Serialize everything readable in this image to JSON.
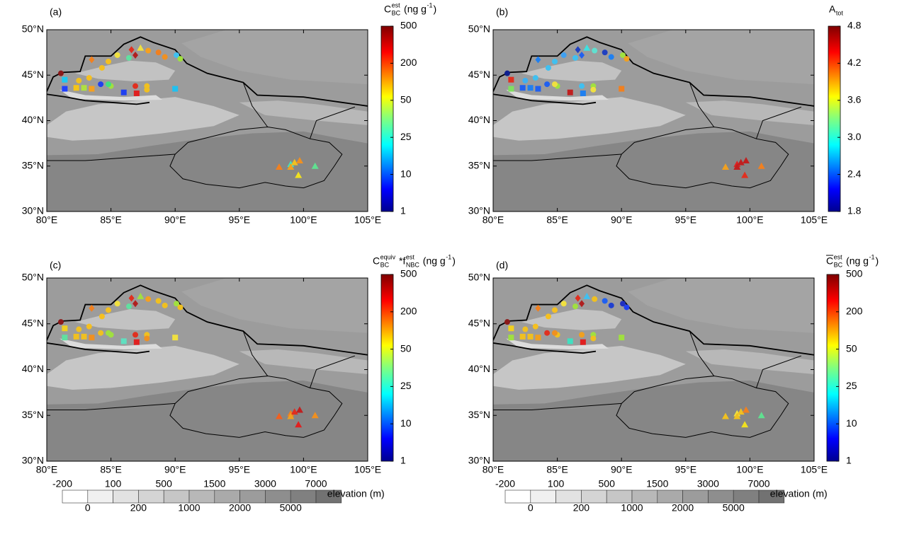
{
  "sites": {
    "lon": [
      81.1,
      81.4,
      81.4,
      82.3,
      82.9,
      83.5,
      82.5,
      83.3,
      83.5,
      84.3,
      84.8,
      85.5,
      86.4,
      86.9,
      86.6,
      87.3,
      87.9,
      88.7,
      89.2,
      90.1,
      90.4,
      84.2,
      85.0,
      86.0,
      86.9,
      87.0,
      87.8,
      87.8,
      90.0,
      84.8,
      98.1,
      99.0,
      99.3,
      99.7,
      99.6,
      100.9,
      99.0
    ],
    "lat": [
      45.2,
      44.5,
      43.5,
      43.6,
      43.6,
      43.5,
      44.4,
      44.7,
      46.7,
      45.8,
      46.5,
      47.2,
      46.9,
      47.2,
      47.8,
      48.0,
      47.7,
      47.5,
      47.0,
      47.2,
      46.8,
      44.0,
      43.8,
      43.1,
      43.8,
      43.0,
      43.8,
      43.4,
      43.5,
      44.0,
      34.9,
      35.2,
      35.4,
      35.6,
      34.0,
      35.0,
      34.9
    ],
    "marker": [
      "circle",
      "square",
      "square",
      "square",
      "square",
      "square",
      "circle",
      "circle",
      "diamond",
      "circle",
      "circle",
      "circle",
      "circle",
      "diamond",
      "diamond",
      "triangle",
      "circle",
      "circle",
      "circle",
      "circle",
      "circle",
      "circle",
      "circle",
      "square",
      "circle",
      "square",
      "circle",
      "circle",
      "square",
      "circle",
      "triangle",
      "triangle",
      "triangle",
      "triangle",
      "triangle",
      "triangle",
      "triangle"
    ]
  },
  "chart_data": [
    {
      "type": "scatter",
      "panel_label": "(a)",
      "colorbar_title": [
        {
          "text": "C"
        },
        {
          "sup": "est",
          "sub": "BC"
        },
        {
          "text": " (ng g"
        },
        {
          "sup": "-1"
        },
        {
          "text": ")"
        }
      ],
      "colorbar_scale": "discrete",
      "colormap": "jet",
      "colorbar_ticks": [
        1,
        10,
        25,
        50,
        200,
        500
      ],
      "xlim": [
        80,
        105
      ],
      "ylim": [
        30,
        50
      ],
      "xticks": [
        {
          "value": 80,
          "label": "80°E"
        },
        {
          "value": 85,
          "label": "85°E"
        },
        {
          "value": 90,
          "label": "90°E"
        },
        {
          "value": 95,
          "label": "95°E"
        },
        {
          "value": 100,
          "label": "100°E"
        },
        {
          "value": 105,
          "label": "105°E"
        }
      ],
      "yticks": [
        {
          "value": 30,
          "label": "30°N"
        },
        {
          "value": 35,
          "label": "35°N"
        },
        {
          "value": 40,
          "label": "40°N"
        },
        {
          "value": 45,
          "label": "45°N"
        },
        {
          "value": 50,
          "label": "50°N"
        }
      ],
      "point_colors": [
        "#8b1a1a",
        "#1ec8f0",
        "#2040ff",
        "#f5c518",
        "#b0e040",
        "#f5a020",
        "#f0c020",
        "#f5c020",
        "#f08020",
        "#f5c020",
        "#f5c020",
        "#f0e040",
        "#60e0a0",
        "#b02020",
        "#e03020",
        "#f0e040",
        "#f5a020",
        "#f08020",
        "#f09020",
        "#40c0f0",
        "#a0e040",
        "#2040f0",
        "#a0e040",
        "#2040f0",
        "#e03020",
        "#e02020",
        "#f0c020",
        "#f0c020",
        "#20c0f0",
        "#40e080",
        "#f08020",
        "#40e0c0",
        "#f0c020",
        "#f09020",
        "#f0e020",
        "#60e090",
        "#f0a020"
      ]
    },
    {
      "type": "scatter",
      "panel_label": "(b)",
      "colorbar_title": [
        {
          "text": "A"
        },
        {
          "sub": "tot"
        }
      ],
      "colorbar_scale": "linear",
      "colormap": "jet",
      "clim": [
        1.8,
        4.8
      ],
      "colorbar_ticks": [
        1.8,
        2.4,
        3.0,
        3.6,
        4.2,
        4.8
      ],
      "colorbar_tick_labels": [
        "1.8",
        "2.4",
        "3.0",
        "3.6",
        "4.2",
        "4.8"
      ],
      "xlim": [
        80,
        105
      ],
      "ylim": [
        30,
        50
      ],
      "xticks": [
        {
          "value": 80,
          "label": "80°E"
        },
        {
          "value": 85,
          "label": "85°E"
        },
        {
          "value": 90,
          "label": "90°E"
        },
        {
          "value": 95,
          "label": "95°E"
        },
        {
          "value": 100,
          "label": "100°E"
        },
        {
          "value": 105,
          "label": "105°E"
        }
      ],
      "yticks": [
        {
          "value": 30,
          "label": "30°N"
        },
        {
          "value": 35,
          "label": "35°N"
        },
        {
          "value": 40,
          "label": "40°N"
        },
        {
          "value": 45,
          "label": "45°N"
        },
        {
          "value": 50,
          "label": "50°N"
        }
      ],
      "point_colors": [
        "#10208f",
        "#e03020",
        "#80e060",
        "#2060f0",
        "#2080f0",
        "#2060f0",
        "#40b0f0",
        "#40c0f0",
        "#2080f0",
        "#40c0f0",
        "#40c0f0",
        "#40a0f0",
        "#40c0f0",
        "#2060f0",
        "#2040c0",
        "#40e0e0",
        "#60e0d0",
        "#2040c0",
        "#2080f0",
        "#a0e040",
        "#f0a020",
        "#2060f0",
        "#a0e040",
        "#c02020",
        "#40c0f0",
        "#2080f0",
        "#a0e040",
        "#f0e040",
        "#f08020",
        "#f0e040",
        "#f0a020",
        "#e02020",
        "#c02020",
        "#c02020",
        "#e03020",
        "#f08020",
        "#c02020"
      ]
    },
    {
      "type": "scatter",
      "panel_label": "(c)",
      "colorbar_title": [
        {
          "text": "C"
        },
        {
          "sup": "equiv",
          "sub": "BC"
        },
        {
          "text": " *f"
        },
        {
          "sup": "est",
          "sub": "NBC"
        },
        {
          "text": " (ng g"
        },
        {
          "sup": "-1"
        },
        {
          "text": ")"
        }
      ],
      "colorbar_scale": "discrete",
      "colormap": "jet",
      "colorbar_ticks": [
        1,
        10,
        25,
        50,
        200,
        500
      ],
      "xlim": [
        80,
        105
      ],
      "ylim": [
        30,
        50
      ],
      "xticks": [
        {
          "value": 80,
          "label": "80°E"
        },
        {
          "value": 85,
          "label": "85°E"
        },
        {
          "value": 90,
          "label": "90°E"
        },
        {
          "value": 95,
          "label": "95°E"
        },
        {
          "value": 100,
          "label": "100°E"
        },
        {
          "value": 105,
          "label": "105°E"
        }
      ],
      "yticks": [
        {
          "value": 30,
          "label": "30°N"
        },
        {
          "value": 35,
          "label": "35°N"
        },
        {
          "value": 40,
          "label": "40°N"
        },
        {
          "value": 45,
          "label": "45°N"
        },
        {
          "value": 50,
          "label": "50°N"
        }
      ],
      "point_colors": [
        "#8b1a1a",
        "#f0d020",
        "#60e0a0",
        "#f0c020",
        "#f0c020",
        "#f09020",
        "#f0c020",
        "#f5c020",
        "#f08020",
        "#f5c020",
        "#f5c020",
        "#f0e040",
        "#60e0a0",
        "#b02020",
        "#e03020",
        "#a0e040",
        "#f5a020",
        "#f0c020",
        "#f0c020",
        "#a0e040",
        "#f0c020",
        "#f0c020",
        "#a0e040",
        "#60e0c0",
        "#e03020",
        "#e02020",
        "#f0c020",
        "#f09020",
        "#f0e040",
        "#a0e040",
        "#f06020",
        "#f08020",
        "#e03020",
        "#c02020",
        "#e02020",
        "#f09020",
        "#f0a020"
      ]
    },
    {
      "type": "scatter",
      "panel_label": "(d)",
      "colorbar_title": [
        {
          "text": "C",
          "overline": true
        },
        {
          "sup": "est",
          "sub": "BC"
        },
        {
          "text": " (ng g"
        },
        {
          "sup": "-1"
        },
        {
          "text": ")"
        }
      ],
      "colorbar_scale": "discrete",
      "colormap": "jet",
      "colorbar_ticks": [
        1,
        10,
        25,
        50,
        200,
        500
      ],
      "xlim": [
        80,
        105
      ],
      "ylim": [
        30,
        50
      ],
      "xticks": [
        {
          "value": 80,
          "label": "80°E"
        },
        {
          "value": 85,
          "label": "85°E"
        },
        {
          "value": 90,
          "label": "90°E"
        },
        {
          "value": 95,
          "label": "95°E"
        },
        {
          "value": 100,
          "label": "100°E"
        },
        {
          "value": 105,
          "label": "105°E"
        }
      ],
      "yticks": [
        {
          "value": 30,
          "label": "30°N"
        },
        {
          "value": 35,
          "label": "35°N"
        },
        {
          "value": 40,
          "label": "40°N"
        },
        {
          "value": 45,
          "label": "45°N"
        },
        {
          "value": 50,
          "label": "50°N"
        }
      ],
      "point_colors": [
        "#8b1a1a",
        "#f0d020",
        "#a0e040",
        "#f0c020",
        "#f0c020",
        "#f0a020",
        "#f0c020",
        "#f5c020",
        "#f08020",
        "#f5c020",
        "#f5c020",
        "#f0e040",
        "#a0e040",
        "#b02020",
        "#e03020",
        "#40c0f0",
        "#f0c020",
        "#2060f0",
        "#2040d0",
        "#2030c0",
        "#2040f0",
        "#e03020",
        "#f0c020",
        "#40e0c0",
        "#f0a020",
        "#e02020",
        "#a0e040",
        "#f0c020",
        "#a0e040",
        "#f09020",
        "#f0c020",
        "#f0e040",
        "#f0c020",
        "#f08020",
        "#f0e020",
        "#60e090",
        "#f0c020"
      ]
    }
  ],
  "elevation_legend": {
    "title": "elevation (m)",
    "levels": [
      -200,
      0,
      100,
      200,
      500,
      1000,
      1500,
      2000,
      3000,
      5000,
      7000
    ],
    "colors": [
      "#ffffff",
      "#f0f0f0",
      "#e2e2e2",
      "#d4d4d4",
      "#c6c6c6",
      "#b8b8b8",
      "#aaaaaa",
      "#9c9c9c",
      "#8e8e8e",
      "#808080",
      "#727272"
    ]
  }
}
